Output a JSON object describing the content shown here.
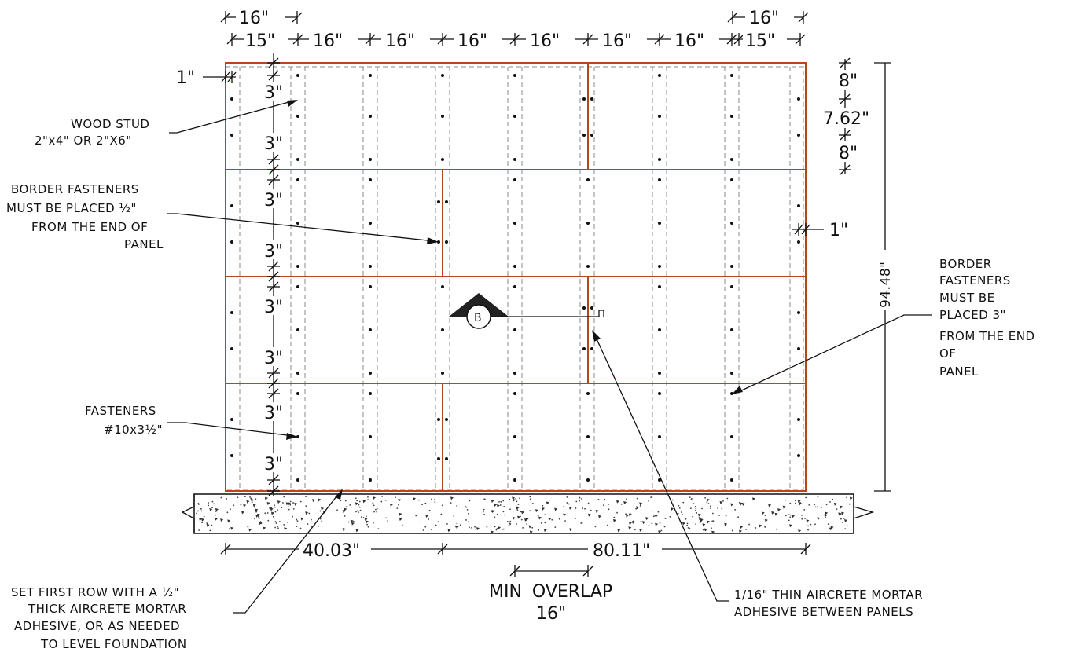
{
  "top_dims": {
    "row1_left": "16\"",
    "row1_right": "16\"",
    "row2": [
      "15\"",
      "16\"",
      "16\"",
      "16\"",
      "16\"",
      "16\"",
      "16\"",
      "15\""
    ]
  },
  "left_dims": {
    "edge": "1\"",
    "spacings": [
      "3\"",
      "3\"",
      "3\"",
      "3\"",
      "3\"",
      "3\"",
      "3\""
    ]
  },
  "right_dims": {
    "top": "8\"",
    "mid": "7.62\"",
    "bottom": "8\"",
    "edge": "1\"",
    "height": "94.48\""
  },
  "labels": {
    "wood_stud": [
      "WOOD STUD",
      "2\"x4\" OR 2\"X6\""
    ],
    "border_left": [
      "BORDER FASTENERS",
      "MUST BE PLACED ½\"",
      "FROM THE END OF",
      "PANEL"
    ],
    "fasteners": [
      "FASTENERS",
      "#10x3½\""
    ],
    "border_right": [
      "BORDER",
      "FASTENERS",
      "MUST BE",
      "PLACED 3\"",
      "FROM THE END",
      "OF",
      "PANEL"
    ],
    "first_row": [
      "SET FIRST ROW WITH A ½\"",
      "THICK AIRCRETE MORTAR",
      "ADHESIVE, OR AS NEEDED",
      "TO LEVEL FOUNDATION"
    ],
    "thin_mortar": [
      "1/16\" THIN AIRCRETE MORTAR",
      "ADHESIVE BETWEEN PANELS"
    ],
    "overlap": [
      "MIN  OVERLAP",
      "16\""
    ],
    "section_marker": "B"
  },
  "bottom_dims": {
    "left": "40.03\"",
    "right": "80.11\""
  },
  "colors": {
    "panel": "#b5461d",
    "line": "#111111",
    "stud": "#8a8a8a"
  }
}
